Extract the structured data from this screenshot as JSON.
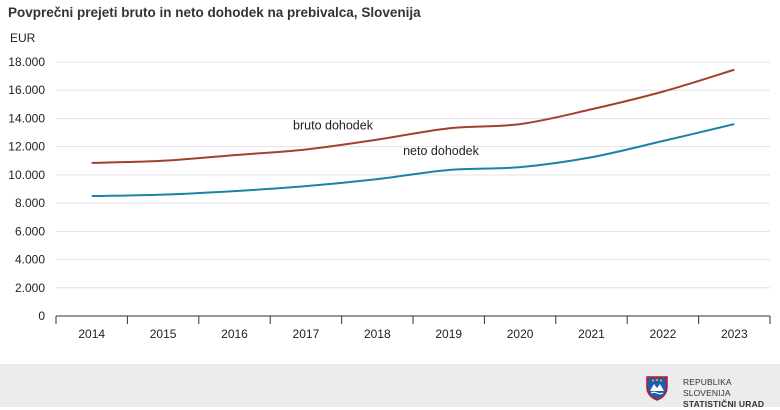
{
  "footer": {
    "line1": "REPUBLIKA SLOVENIJA",
    "line2": "STATISTIČNI URAD",
    "logo_icon": "slovenia-coat-of-arms-icon"
  },
  "chart_data": {
    "type": "line",
    "title": "Povprečni prejeti bruto in neto dohodek na prebivalca, Slovenija",
    "ylabel": "EUR",
    "xlabel": "",
    "x": [
      "2014",
      "2015",
      "2016",
      "2017",
      "2018",
      "2019",
      "2020",
      "2021",
      "2022",
      "2023"
    ],
    "ylim": [
      0,
      18000
    ],
    "yticks": [
      0,
      2000,
      4000,
      6000,
      8000,
      10000,
      12000,
      14000,
      16000,
      18000
    ],
    "ytick_labels": [
      "0",
      "2.000",
      "4.000",
      "6.000",
      "8.000",
      "10.000",
      "12.000",
      "14.000",
      "16.000",
      "18.000"
    ],
    "grid": true,
    "series": [
      {
        "name": "bruto dohodek",
        "color": "#a0432b",
        "values": [
          10850,
          11000,
          11400,
          11800,
          12500,
          13300,
          13600,
          14650,
          15900,
          17450
        ]
      },
      {
        "name": "neto dohodek",
        "color": "#1a83a6",
        "values": [
          8500,
          8600,
          8850,
          9200,
          9700,
          10350,
          10550,
          11250,
          12400,
          13600
        ]
      }
    ]
  }
}
